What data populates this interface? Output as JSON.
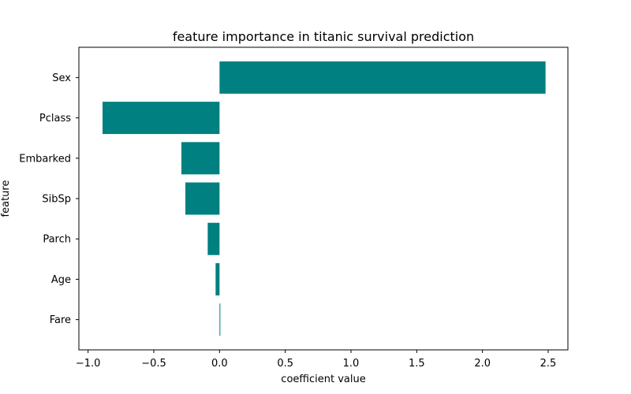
{
  "chart_data": {
    "type": "bar",
    "orientation": "horizontal",
    "title": "feature importance in titanic survival prediction",
    "xlabel": "coefficient value",
    "ylabel": "feature",
    "categories": [
      "Sex",
      "Pclass",
      "Embarked",
      "SibSp",
      "Parch",
      "Age",
      "Fare"
    ],
    "values": [
      2.48,
      -0.89,
      -0.29,
      -0.26,
      -0.09,
      -0.03,
      0.003
    ],
    "xlim": [
      -1.07,
      2.65
    ],
    "xticks": [
      -1.0,
      -0.5,
      0.0,
      0.5,
      1.0,
      1.5,
      2.0,
      2.5
    ],
    "xtick_labels": [
      "−1.0",
      "−0.5",
      "0.0",
      "0.5",
      "1.0",
      "1.5",
      "2.0",
      "2.5"
    ],
    "grid": false,
    "bar_color": "#008080"
  }
}
